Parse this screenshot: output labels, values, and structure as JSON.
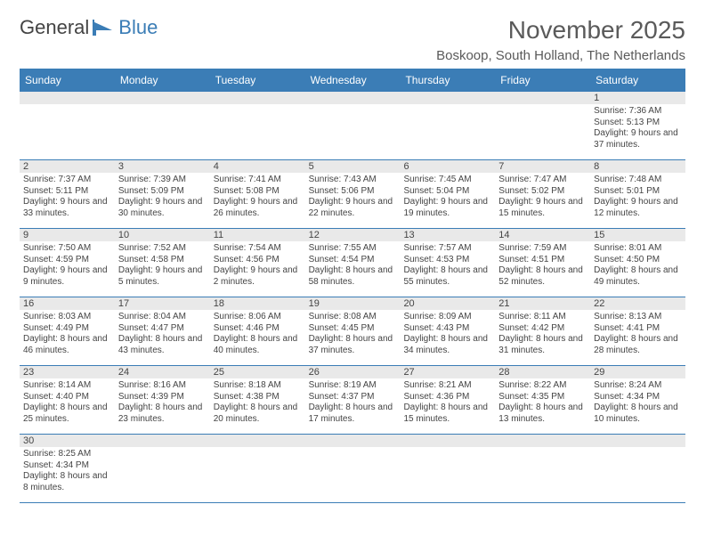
{
  "logo": {
    "text1": "General",
    "text2": "Blue"
  },
  "title": "November 2025",
  "location": "Boskoop, South Holland, The Netherlands",
  "colors": {
    "header_bg": "#3b7db6",
    "header_fg": "#ffffff",
    "daynum_bg": "#e9e9e9",
    "text": "#444444",
    "page_bg": "#ffffff"
  },
  "typography": {
    "title_fontsize": 28,
    "location_fontsize": 15,
    "header_fontsize": 12,
    "cell_fontsize": 10
  },
  "day_names": [
    "Sunday",
    "Monday",
    "Tuesday",
    "Wednesday",
    "Thursday",
    "Friday",
    "Saturday"
  ],
  "weeks": [
    [
      {
        "n": "",
        "sr": "",
        "ss": "",
        "dl": ""
      },
      {
        "n": "",
        "sr": "",
        "ss": "",
        "dl": ""
      },
      {
        "n": "",
        "sr": "",
        "ss": "",
        "dl": ""
      },
      {
        "n": "",
        "sr": "",
        "ss": "",
        "dl": ""
      },
      {
        "n": "",
        "sr": "",
        "ss": "",
        "dl": ""
      },
      {
        "n": "",
        "sr": "",
        "ss": "",
        "dl": ""
      },
      {
        "n": "1",
        "sr": "Sunrise: 7:36 AM",
        "ss": "Sunset: 5:13 PM",
        "dl": "Daylight: 9 hours and 37 minutes."
      }
    ],
    [
      {
        "n": "2",
        "sr": "Sunrise: 7:37 AM",
        "ss": "Sunset: 5:11 PM",
        "dl": "Daylight: 9 hours and 33 minutes."
      },
      {
        "n": "3",
        "sr": "Sunrise: 7:39 AM",
        "ss": "Sunset: 5:09 PM",
        "dl": "Daylight: 9 hours and 30 minutes."
      },
      {
        "n": "4",
        "sr": "Sunrise: 7:41 AM",
        "ss": "Sunset: 5:08 PM",
        "dl": "Daylight: 9 hours and 26 minutes."
      },
      {
        "n": "5",
        "sr": "Sunrise: 7:43 AM",
        "ss": "Sunset: 5:06 PM",
        "dl": "Daylight: 9 hours and 22 minutes."
      },
      {
        "n": "6",
        "sr": "Sunrise: 7:45 AM",
        "ss": "Sunset: 5:04 PM",
        "dl": "Daylight: 9 hours and 19 minutes."
      },
      {
        "n": "7",
        "sr": "Sunrise: 7:47 AM",
        "ss": "Sunset: 5:02 PM",
        "dl": "Daylight: 9 hours and 15 minutes."
      },
      {
        "n": "8",
        "sr": "Sunrise: 7:48 AM",
        "ss": "Sunset: 5:01 PM",
        "dl": "Daylight: 9 hours and 12 minutes."
      }
    ],
    [
      {
        "n": "9",
        "sr": "Sunrise: 7:50 AM",
        "ss": "Sunset: 4:59 PM",
        "dl": "Daylight: 9 hours and 9 minutes."
      },
      {
        "n": "10",
        "sr": "Sunrise: 7:52 AM",
        "ss": "Sunset: 4:58 PM",
        "dl": "Daylight: 9 hours and 5 minutes."
      },
      {
        "n": "11",
        "sr": "Sunrise: 7:54 AM",
        "ss": "Sunset: 4:56 PM",
        "dl": "Daylight: 9 hours and 2 minutes."
      },
      {
        "n": "12",
        "sr": "Sunrise: 7:55 AM",
        "ss": "Sunset: 4:54 PM",
        "dl": "Daylight: 8 hours and 58 minutes."
      },
      {
        "n": "13",
        "sr": "Sunrise: 7:57 AM",
        "ss": "Sunset: 4:53 PM",
        "dl": "Daylight: 8 hours and 55 minutes."
      },
      {
        "n": "14",
        "sr": "Sunrise: 7:59 AM",
        "ss": "Sunset: 4:51 PM",
        "dl": "Daylight: 8 hours and 52 minutes."
      },
      {
        "n": "15",
        "sr": "Sunrise: 8:01 AM",
        "ss": "Sunset: 4:50 PM",
        "dl": "Daylight: 8 hours and 49 minutes."
      }
    ],
    [
      {
        "n": "16",
        "sr": "Sunrise: 8:03 AM",
        "ss": "Sunset: 4:49 PM",
        "dl": "Daylight: 8 hours and 46 minutes."
      },
      {
        "n": "17",
        "sr": "Sunrise: 8:04 AM",
        "ss": "Sunset: 4:47 PM",
        "dl": "Daylight: 8 hours and 43 minutes."
      },
      {
        "n": "18",
        "sr": "Sunrise: 8:06 AM",
        "ss": "Sunset: 4:46 PM",
        "dl": "Daylight: 8 hours and 40 minutes."
      },
      {
        "n": "19",
        "sr": "Sunrise: 8:08 AM",
        "ss": "Sunset: 4:45 PM",
        "dl": "Daylight: 8 hours and 37 minutes."
      },
      {
        "n": "20",
        "sr": "Sunrise: 8:09 AM",
        "ss": "Sunset: 4:43 PM",
        "dl": "Daylight: 8 hours and 34 minutes."
      },
      {
        "n": "21",
        "sr": "Sunrise: 8:11 AM",
        "ss": "Sunset: 4:42 PM",
        "dl": "Daylight: 8 hours and 31 minutes."
      },
      {
        "n": "22",
        "sr": "Sunrise: 8:13 AM",
        "ss": "Sunset: 4:41 PM",
        "dl": "Daylight: 8 hours and 28 minutes."
      }
    ],
    [
      {
        "n": "23",
        "sr": "Sunrise: 8:14 AM",
        "ss": "Sunset: 4:40 PM",
        "dl": "Daylight: 8 hours and 25 minutes."
      },
      {
        "n": "24",
        "sr": "Sunrise: 8:16 AM",
        "ss": "Sunset: 4:39 PM",
        "dl": "Daylight: 8 hours and 23 minutes."
      },
      {
        "n": "25",
        "sr": "Sunrise: 8:18 AM",
        "ss": "Sunset: 4:38 PM",
        "dl": "Daylight: 8 hours and 20 minutes."
      },
      {
        "n": "26",
        "sr": "Sunrise: 8:19 AM",
        "ss": "Sunset: 4:37 PM",
        "dl": "Daylight: 8 hours and 17 minutes."
      },
      {
        "n": "27",
        "sr": "Sunrise: 8:21 AM",
        "ss": "Sunset: 4:36 PM",
        "dl": "Daylight: 8 hours and 15 minutes."
      },
      {
        "n": "28",
        "sr": "Sunrise: 8:22 AM",
        "ss": "Sunset: 4:35 PM",
        "dl": "Daylight: 8 hours and 13 minutes."
      },
      {
        "n": "29",
        "sr": "Sunrise: 8:24 AM",
        "ss": "Sunset: 4:34 PM",
        "dl": "Daylight: 8 hours and 10 minutes."
      }
    ],
    [
      {
        "n": "30",
        "sr": "Sunrise: 8:25 AM",
        "ss": "Sunset: 4:34 PM",
        "dl": "Daylight: 8 hours and 8 minutes."
      },
      {
        "n": "",
        "sr": "",
        "ss": "",
        "dl": ""
      },
      {
        "n": "",
        "sr": "",
        "ss": "",
        "dl": ""
      },
      {
        "n": "",
        "sr": "",
        "ss": "",
        "dl": ""
      },
      {
        "n": "",
        "sr": "",
        "ss": "",
        "dl": ""
      },
      {
        "n": "",
        "sr": "",
        "ss": "",
        "dl": ""
      },
      {
        "n": "",
        "sr": "",
        "ss": "",
        "dl": ""
      }
    ]
  ]
}
